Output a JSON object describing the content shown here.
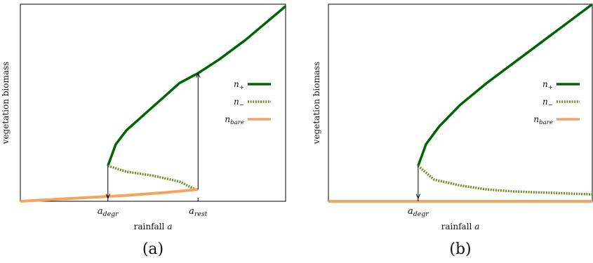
{
  "chart_data": [
    {
      "type": "line",
      "panel_label": "(a)",
      "ylabel": "vegetation biomass",
      "xlabel_text": "rainfall ",
      "xlabel_var": "a",
      "xticks": [
        {
          "base": "a",
          "sub": "degr",
          "x": 0.33
        },
        {
          "base": "a",
          "sub": "rest",
          "x": 0.67
        }
      ],
      "xlim": [
        0,
        1
      ],
      "ylim": [
        0,
        1
      ],
      "legend": [
        {
          "base": "n",
          "sub": "+",
          "style": "solid",
          "color": "#006400"
        },
        {
          "base": "n",
          "sub": "−",
          "style": "dotted",
          "color": "#6b8e23"
        },
        {
          "base": "n",
          "sub": "bare",
          "style": "solid",
          "color": "#f4a460"
        }
      ],
      "legend_position": "right",
      "series": [
        {
          "key": "n_plus",
          "style": "solid",
          "color": "#006400",
          "x": [
            0.33,
            0.36,
            0.4,
            0.45,
            0.5,
            0.55,
            0.6,
            0.67,
            0.75,
            0.85,
            1.0
          ],
          "y": [
            0.18,
            0.29,
            0.36,
            0.42,
            0.48,
            0.54,
            0.6,
            0.65,
            0.72,
            0.82,
            0.99
          ]
        },
        {
          "key": "n_minus",
          "style": "dotted",
          "color": "#6b8e23",
          "x": [
            0.33,
            0.4,
            0.5,
            0.6,
            0.66,
            0.67
          ],
          "y": [
            0.18,
            0.15,
            0.13,
            0.1,
            0.06,
            0.06
          ]
        },
        {
          "key": "n_bare",
          "style": "solid",
          "color": "#f4a460",
          "x": [
            0.0,
            0.2,
            0.4,
            0.55,
            0.67
          ],
          "y": [
            0.0,
            0.015,
            0.03,
            0.045,
            0.06
          ]
        }
      ],
      "annotations": [
        {
          "type": "arrow",
          "x": 0.33,
          "y_from": 0.18,
          "y_to": 0.015
        },
        {
          "type": "arrow",
          "x": 0.67,
          "y_from": 0.06,
          "y_to": 0.65
        }
      ]
    },
    {
      "type": "line",
      "panel_label": "(b)",
      "ylabel": "vegetation biomass",
      "xlabel_text": "rainfall ",
      "xlabel_var": "a",
      "xticks": [
        {
          "base": "a",
          "sub": "degr",
          "x": 0.34
        }
      ],
      "xlim": [
        0,
        1
      ],
      "ylim": [
        0,
        1
      ],
      "legend": [
        {
          "base": "n",
          "sub": "+",
          "style": "solid",
          "color": "#006400"
        },
        {
          "base": "n",
          "sub": "−",
          "style": "dotted",
          "color": "#6b8e23"
        },
        {
          "base": "n",
          "sub": "bare",
          "style": "solid",
          "color": "#f4a460"
        }
      ],
      "legend_position": "right",
      "series": [
        {
          "key": "n_plus",
          "style": "solid",
          "color": "#006400",
          "x": [
            0.34,
            0.37,
            0.42,
            0.5,
            0.6,
            0.7,
            0.8,
            0.9,
            1.0
          ],
          "y": [
            0.18,
            0.29,
            0.38,
            0.49,
            0.6,
            0.7,
            0.8,
            0.9,
            1.0
          ]
        },
        {
          "key": "n_minus",
          "style": "dotted",
          "color": "#6b8e23",
          "x": [
            0.34,
            0.4,
            0.5,
            0.6,
            0.7,
            0.8,
            0.9,
            1.0
          ],
          "y": [
            0.18,
            0.11,
            0.08,
            0.06,
            0.05,
            0.045,
            0.04,
            0.035
          ]
        },
        {
          "key": "n_bare",
          "style": "solid",
          "color": "#f4a460",
          "x": [
            0.0,
            1.0
          ],
          "y": [
            0.0,
            0.0
          ]
        }
      ],
      "annotations": [
        {
          "type": "arrow",
          "x": 0.34,
          "y_from": 0.18,
          "y_to": 0.015
        }
      ]
    }
  ]
}
